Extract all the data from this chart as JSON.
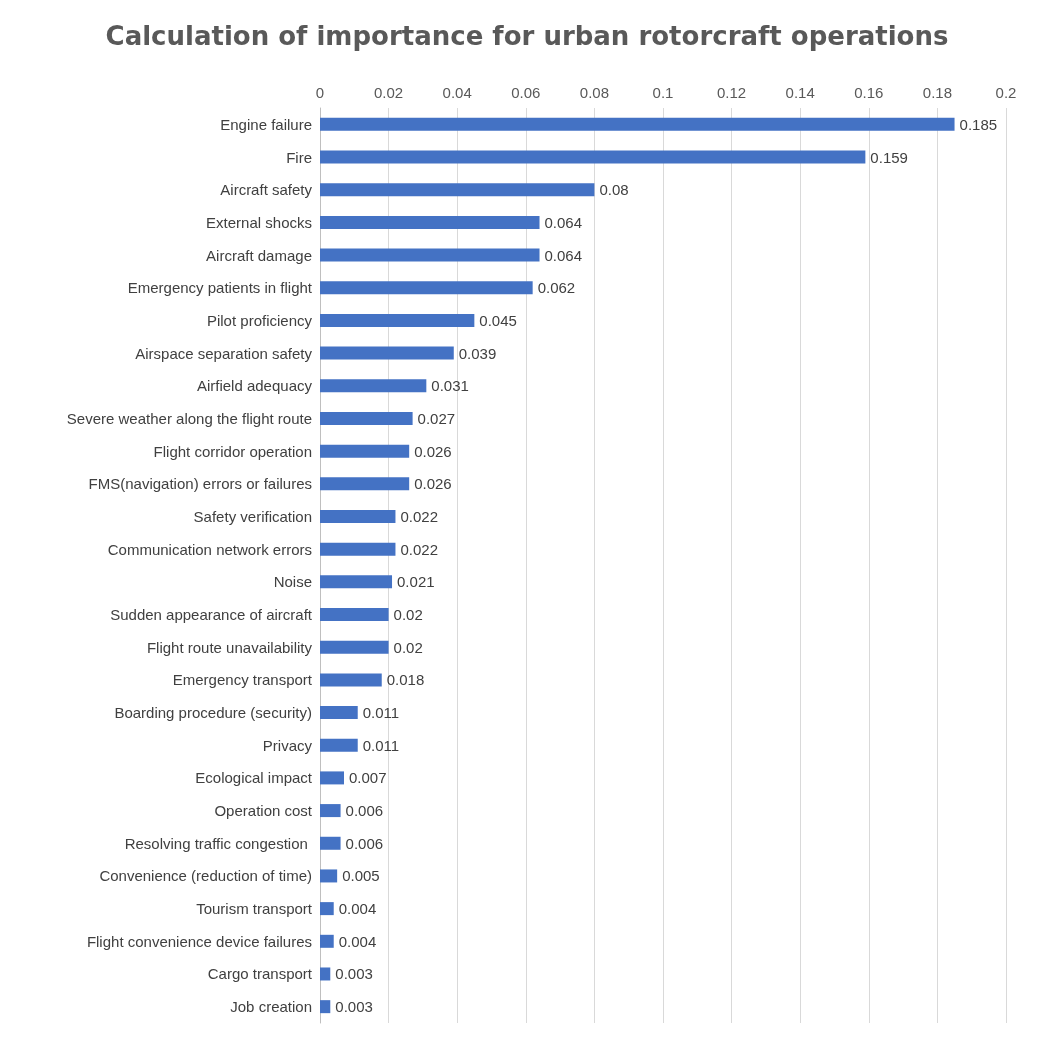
{
  "chart_data": {
    "type": "bar",
    "orientation": "horizontal",
    "title": "Calculation of importance for urban rotorcraft operations",
    "categories": [
      "Engine failure",
      "Fire",
      "Aircraft safety",
      "External shocks",
      "Aircraft damage",
      "Emergency patients in flight",
      "Pilot proficiency",
      "Airspace separation safety",
      "Airfield adequacy",
      "Severe weather along the flight route",
      "Flight corridor operation",
      "FMS(navigation) errors or failures",
      "Safety verification",
      "Communication network errors",
      "Noise",
      "Sudden appearance of aircraft",
      "Flight route unavailability",
      "Emergency transport",
      "Boarding procedure (security)",
      "Privacy",
      "Ecological impact",
      "Operation cost",
      "Resolving traffic congestion ",
      "Convenience (reduction of time)",
      "Tourism transport",
      "Flight convenience device failures",
      "Cargo transport",
      "Job creation"
    ],
    "values": [
      0.185,
      0.159,
      0.08,
      0.064,
      0.064,
      0.062,
      0.045,
      0.039,
      0.031,
      0.027,
      0.026,
      0.026,
      0.022,
      0.022,
      0.021,
      0.02,
      0.02,
      0.018,
      0.011,
      0.011,
      0.007,
      0.006,
      0.006,
      0.005,
      0.004,
      0.004,
      0.003,
      0.003
    ],
    "color": "#4472c4",
    "xlim": [
      0,
      0.2
    ],
    "xticks": [
      0,
      0.02,
      0.04,
      0.06,
      0.08,
      0.1,
      0.12,
      0.14,
      0.16,
      0.18,
      0.2
    ],
    "grid": "x",
    "data_labels": true
  }
}
